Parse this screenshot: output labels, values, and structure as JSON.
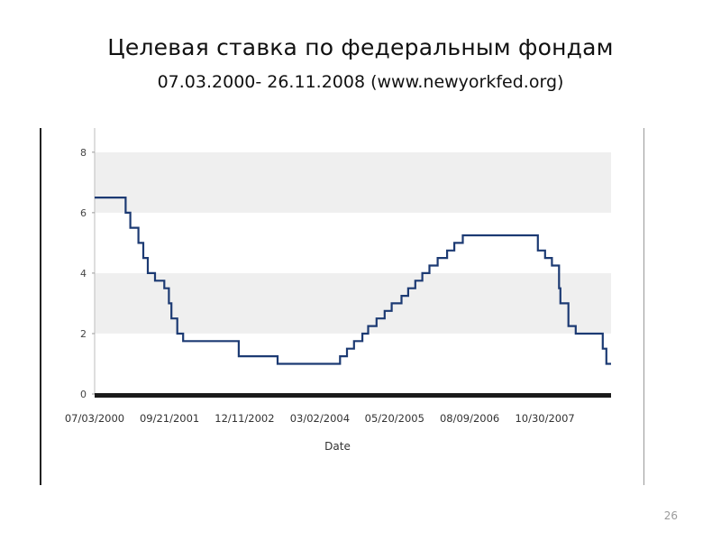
{
  "slide": {
    "title": "Целевая ставка по федеральным фондам",
    "subtitle": "07.03.2000- 26.11.2008 (www.newyorkfed.org)",
    "page_number": "26"
  },
  "chart_data": {
    "type": "line",
    "title": "",
    "xlabel": "Date",
    "ylabel": "",
    "xlim": [
      "07/03/2000",
      "11/26/2008"
    ],
    "ylim": [
      0,
      8.8
    ],
    "yticks": [
      0,
      2,
      4,
      6,
      8
    ],
    "xticks": [
      "07/03/2000",
      "09/21/2001",
      "12/11/2002",
      "03/02/2004",
      "05/20/2005",
      "08/09/2006",
      "10/30/2007"
    ],
    "grid": "horizontal bands",
    "line_color": "#1c3a73",
    "step": true,
    "x": [
      "07/03/2000",
      "01/03/2001",
      "01/31/2001",
      "03/20/2001",
      "04/18/2001",
      "05/15/2001",
      "06/27/2001",
      "08/21/2001",
      "09/17/2001",
      "10/02/2001",
      "11/06/2001",
      "12/11/2001",
      "11/06/2002",
      "06/25/2003",
      "06/30/2004",
      "08/10/2004",
      "09/21/2004",
      "11/10/2004",
      "12/14/2004",
      "02/02/2005",
      "03/22/2005",
      "05/03/2005",
      "06/30/2005",
      "08/09/2005",
      "09/20/2005",
      "11/01/2005",
      "12/13/2005",
      "01/31/2006",
      "03/28/2006",
      "05/10/2006",
      "06/29/2006",
      "09/18/2007",
      "10/31/2007",
      "12/11/2007",
      "01/22/2008",
      "01/30/2008",
      "03/18/2008",
      "04/30/2008",
      "10/08/2008",
      "10/29/2008",
      "11/26/2008"
    ],
    "series": [
      {
        "values": [
          6.5,
          6.0,
          5.5,
          5.0,
          4.5,
          4.0,
          3.75,
          3.5,
          3.0,
          2.5,
          2.0,
          1.75,
          1.25,
          1.0,
          1.25,
          1.5,
          1.75,
          2.0,
          2.25,
          2.5,
          2.75,
          3.0,
          3.25,
          3.5,
          3.75,
          4.0,
          4.25,
          4.5,
          4.75,
          5.0,
          5.25,
          4.75,
          4.5,
          4.25,
          3.5,
          3.0,
          2.25,
          2.0,
          1.5,
          1.0,
          1.0
        ]
      }
    ]
  }
}
